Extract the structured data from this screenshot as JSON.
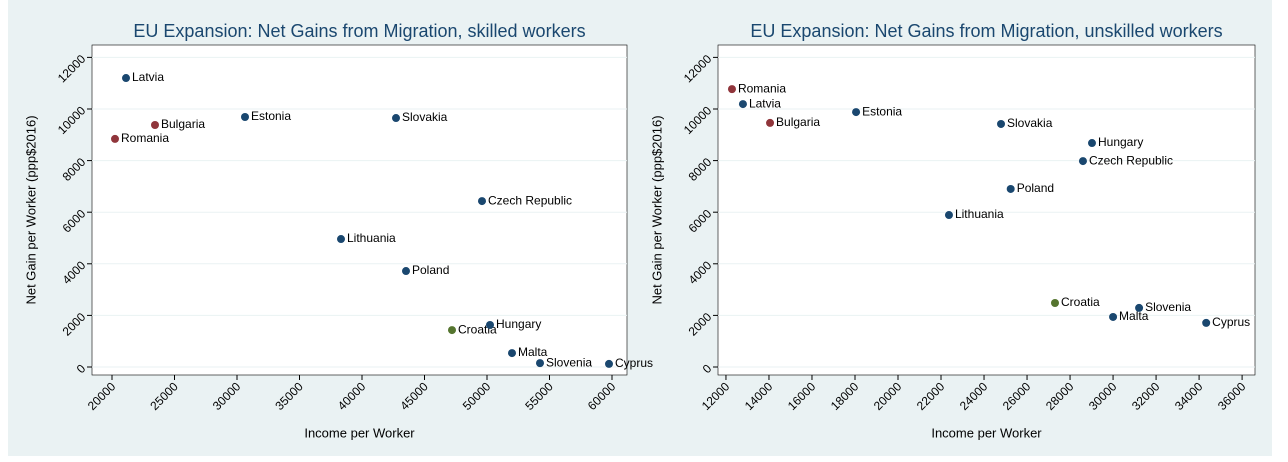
{
  "chart_data": [
    {
      "type": "scatter",
      "title": "EU Expansion: Net Gains from Migration, skilled workers",
      "x_label": "Income per Worker",
      "y_label": "Net Gain per Worker (ppp$2016)",
      "labels": [
        "Latvia",
        "Bulgaria",
        "Romania",
        "Estonia",
        "Slovakia",
        "Czech Republic",
        "Lithuania",
        "Poland",
        "Croatia",
        "Hungary",
        "Malta",
        "Slovenia",
        "Cyprus"
      ],
      "x": [
        21120,
        23440,
        20240,
        30640,
        42720,
        49600,
        38320,
        43520,
        47200,
        50240,
        52000,
        54240,
        59760
      ],
      "y": [
        11200,
        9380,
        8840,
        9690,
        9650,
        6430,
        4960,
        3720,
        1430,
        1630,
        540,
        150,
        120
      ],
      "colors": [
        "#1a476f",
        "#90353b",
        "#90353b",
        "#1a476f",
        "#1a476f",
        "#1a476f",
        "#1a476f",
        "#1a476f",
        "#55752f",
        "#1a476f",
        "#1a476f",
        "#1a476f",
        "#1a476f"
      ],
      "label_colors": [
        "#5b1f84",
        "#5b1f84",
        "#5b1f84",
        "#5b1f84",
        "#5b1f84",
        "#5b1f84",
        "#5b1f84",
        "#5b1f84",
        "#2a3fd4",
        "#3a2fb0",
        "#5b1f84",
        "#3a2fb0",
        "#3a2fb0"
      ],
      "xlim": [
        18400,
        61200
      ],
      "ylim": [
        -310,
        12480
      ],
      "xticks": [
        20000,
        25000,
        30000,
        35000,
        40000,
        45000,
        50000,
        55000,
        60000
      ],
      "yticks": [
        0,
        2000,
        4000,
        6000,
        8000,
        10000,
        12000
      ],
      "grid": true
    },
    {
      "type": "scatter",
      "title": "EU Expansion: Net Gains from Migration, unskilled workers",
      "x_label": "Income per Worker",
      "y_label": "Net Gain per Worker (ppp$2016)",
      "labels": [
        "Romania",
        "Latvia",
        "Bulgaria",
        "Estonia",
        "Slovakia",
        "Hungary",
        "Czech Republic",
        "Poland",
        "Lithuania",
        "Croatia",
        "Slovenia",
        "Malta",
        "Cyprus"
      ],
      "x": [
        12280,
        12790,
        14050,
        18050,
        24790,
        29020,
        28600,
        25240,
        22370,
        27300,
        31210,
        30000,
        34330
      ],
      "y": [
        10770,
        10190,
        9460,
        9880,
        9420,
        8680,
        7980,
        6900,
        5890,
        2480,
        2290,
        1940,
        1710
      ],
      "colors": [
        "#90353b",
        "#1a476f",
        "#90353b",
        "#1a476f",
        "#1a476f",
        "#1a476f",
        "#1a476f",
        "#1a476f",
        "#1a476f",
        "#55752f",
        "#1a476f",
        "#1a476f",
        "#1a476f"
      ],
      "label_colors": [
        "#5b1f84",
        "#5b1f84",
        "#5b1f84",
        "#5b1f84",
        "#5b1f84",
        "#5b1f84",
        "#5b1f84",
        "#5b1f84",
        "#5b1f84",
        "#2a3fd4",
        "#5b1f84",
        "#5b1f84",
        "#5b1f84"
      ],
      "xlim": [
        11630,
        36600
      ],
      "ylim": [
        -310,
        12480
      ],
      "xticks": [
        12000,
        14000,
        16000,
        18000,
        20000,
        22000,
        24000,
        26000,
        28000,
        30000,
        32000,
        34000,
        36000
      ],
      "yticks": [
        0,
        2000,
        4000,
        6000,
        8000,
        10000,
        12000
      ],
      "grid": true
    }
  ]
}
